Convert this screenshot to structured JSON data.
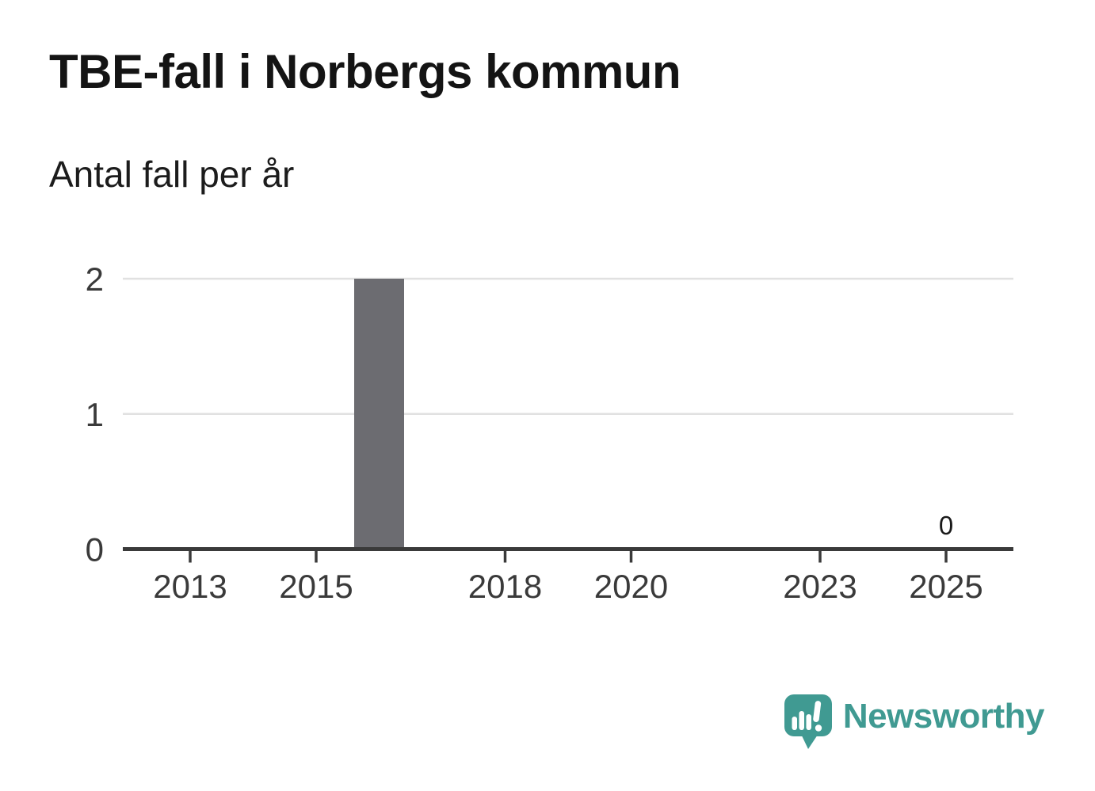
{
  "header": {
    "title": "TBE-fall i Norbergs kommun",
    "subtitle": "Antal fall per år"
  },
  "chart_data": {
    "type": "bar",
    "title": "TBE-fall i Norbergs kommun",
    "subtitle": "Antal fall per år",
    "categories": [
      2013,
      2014,
      2015,
      2016,
      2017,
      2018,
      2019,
      2020,
      2021,
      2022,
      2023,
      2024,
      2025
    ],
    "values": [
      0,
      0,
      0,
      2,
      0,
      0,
      0,
      0,
      0,
      0,
      0,
      0,
      0
    ],
    "xticks": [
      2013,
      2015,
      2018,
      2020,
      2023,
      2025
    ],
    "yticks": [
      0,
      1,
      2
    ],
    "ylim": [
      0,
      2
    ],
    "xlabel": "",
    "ylabel": "",
    "grid": "horizontal",
    "legend": "none",
    "last_value_label": "0",
    "colors": {
      "bar": "#6c6c71",
      "axis": "#3a3a3a",
      "grid": "#e1e1e1",
      "tick_text": "#3a3a3a",
      "value_label": "#1a1a1a"
    }
  },
  "footer": {
    "brand": "Newsworthy",
    "brand_color": "#409a92",
    "logo_icon": "newsworthy-chart-bubble-icon"
  }
}
